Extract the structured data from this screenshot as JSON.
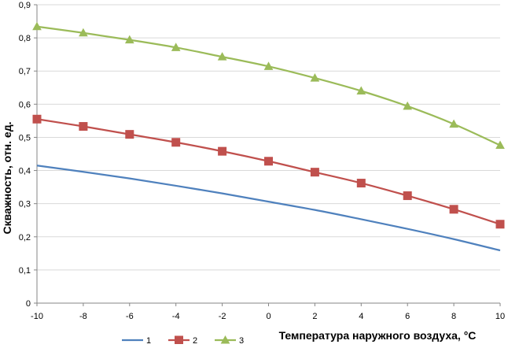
{
  "chart_data": {
    "type": "line",
    "title": "",
    "xlabel": "Температура наружного воздуха, °C",
    "ylabel": "Скважность, отн. ед.",
    "xlim": [
      -10,
      10
    ],
    "ylim": [
      0,
      0.9
    ],
    "x_ticks": [
      -10,
      -8,
      -6,
      -4,
      -2,
      0,
      2,
      4,
      6,
      8,
      10
    ],
    "y_ticks": [
      0,
      0.1,
      0.2,
      0.3,
      0.4,
      0.5,
      0.6,
      0.7,
      0.8,
      0.9
    ],
    "x_tick_labels": [
      "-10",
      "-8",
      "-6",
      "-4",
      "-2",
      "0",
      "2",
      "4",
      "6",
      "8",
      "10"
    ],
    "y_tick_labels": [
      "0",
      "0,1",
      "0,2",
      "0,3",
      "0,4",
      "0,5",
      "0,6",
      "0,7",
      "0,8",
      "0,9"
    ],
    "grid": "horizontal",
    "legend_position": "bottom",
    "x": [
      -10,
      -8,
      -6,
      -4,
      -2,
      0,
      2,
      4,
      6,
      8,
      10
    ],
    "series": [
      {
        "name": "1",
        "color": "#4f81bd",
        "marker": "none",
        "values": [
          0.415,
          0.396,
          0.376,
          0.354,
          0.331,
          0.306,
          0.281,
          0.253,
          0.224,
          0.193,
          0.159
        ]
      },
      {
        "name": "2",
        "color": "#c0504d",
        "marker": "square",
        "values": [
          0.555,
          0.533,
          0.509,
          0.485,
          0.458,
          0.428,
          0.395,
          0.362,
          0.324,
          0.283,
          0.238
        ]
      },
      {
        "name": "3",
        "color": "#9bbb59",
        "marker": "triangle",
        "values": [
          0.834,
          0.815,
          0.794,
          0.771,
          0.743,
          0.714,
          0.679,
          0.64,
          0.594,
          0.54,
          0.476
        ]
      }
    ]
  }
}
